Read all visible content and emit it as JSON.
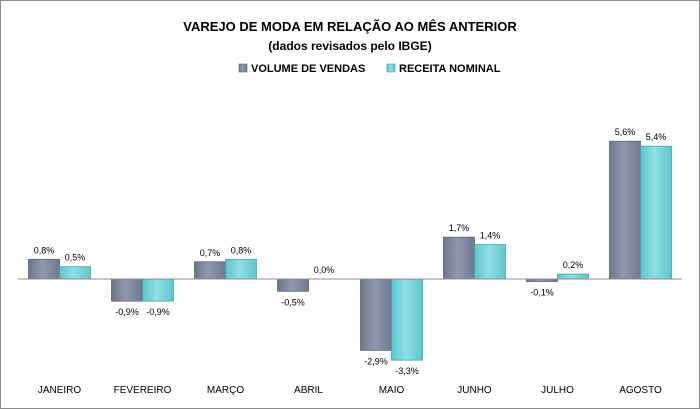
{
  "chart_data": {
    "type": "bar",
    "title": "VAREJO DE MODA EM RELAÇÃO AO MÊS ANTERIOR",
    "subtitle": "(dados revisados pelo IBGE)",
    "categories": [
      "JANEIRO",
      "FEVEREIRO",
      "MARÇO",
      "ABRIL",
      "MAIO",
      "JUNHO",
      "JULHO",
      "AGOSTO"
    ],
    "series": [
      {
        "name": "VOLUME DE VENDAS",
        "color": "#7f8aa0",
        "values": [
          0.8,
          -0.9,
          0.7,
          -0.5,
          -2.9,
          1.7,
          -0.1,
          5.6
        ],
        "labels": [
          "0,8%",
          "-0,9%",
          "0,7%",
          "-0,5%",
          "-2,9%",
          "1,7%",
          "-0,1%",
          "5,6%"
        ]
      },
      {
        "name": "RECEITA NOMINAL",
        "color": "#6fd0d6",
        "values": [
          0.5,
          -0.9,
          0.8,
          0.0,
          -3.3,
          1.4,
          0.2,
          5.4
        ],
        "labels": [
          "0,5%",
          "-0,9%",
          "0,8%",
          "0,0%",
          "-3,3%",
          "1,4%",
          "0,2%",
          "5,4%"
        ]
      }
    ],
    "legend_position": "top",
    "grid": false,
    "axis_line_color": "#8c8c8c"
  }
}
